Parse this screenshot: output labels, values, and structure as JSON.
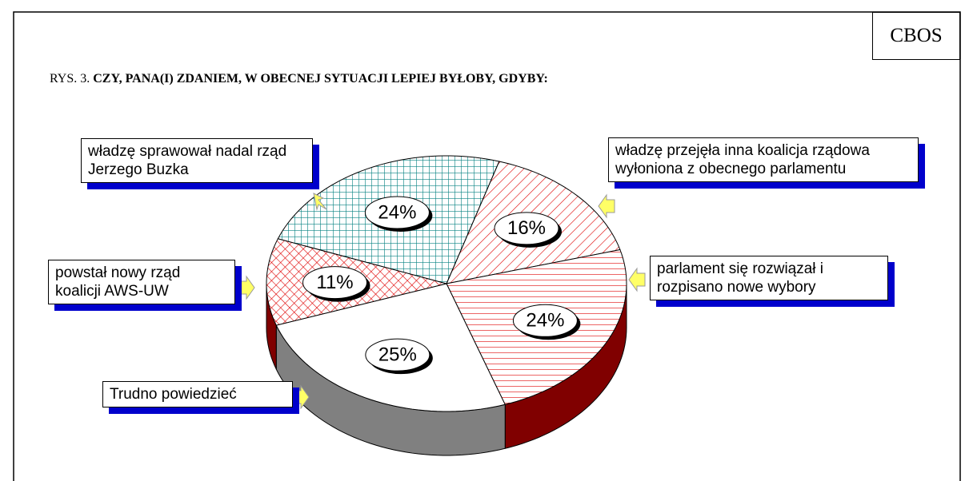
{
  "chart_data": {
    "type": "pie",
    "logo": "CBOS",
    "title_prefix": "RYS. 3.",
    "title": "CZY, PANA(I) ZDANIEM, W OBECNEJ SYTUACJI LEPIEJ BYŁOBY, GDYBY:",
    "categories": [
      "władzę przejęła inna koalicja rządowa wyłoniona z obecnego parlamentu",
      "parlament się rozwiązał i rozpisano nowe wybory",
      "Trudno powiedzieć",
      "powstał nowy rząd koalicji AWS-UW",
      "władzę sprawował nadal rząd Jerzego Buzka"
    ],
    "values": [
      16,
      24,
      25,
      11,
      24
    ],
    "value_labels": [
      "16%",
      "24%",
      "25%",
      "11%",
      "24%"
    ],
    "colors": [
      "#e00000",
      "#e00000",
      "#ffffff",
      "#e00000",
      "#008080"
    ]
  }
}
